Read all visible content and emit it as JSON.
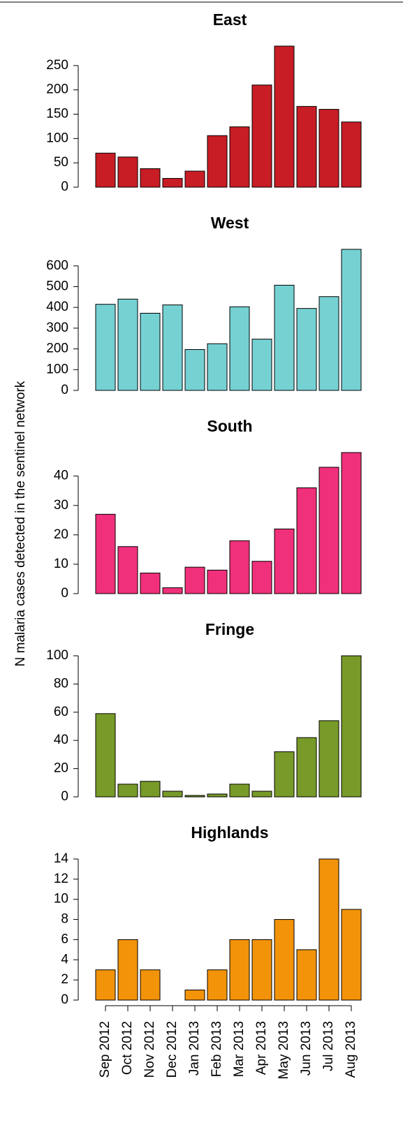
{
  "chart_data": [
    {
      "type": "bar",
      "title": "East",
      "values": [
        70,
        62,
        38,
        18,
        33,
        106,
        124,
        210,
        290,
        166,
        160,
        134
      ],
      "color": "#c81d25",
      "ylim": [
        0,
        290
      ],
      "yticks": [
        0,
        50,
        100,
        150,
        200,
        250
      ]
    },
    {
      "type": "bar",
      "title": "West",
      "values": [
        415,
        440,
        372,
        412,
        197,
        225,
        403,
        247,
        507,
        395,
        452,
        680
      ],
      "color": "#76d1d3",
      "ylim": [
        0,
        680
      ],
      "yticks": [
        0,
        100,
        200,
        300,
        400,
        500,
        600
      ]
    },
    {
      "type": "bar",
      "title": "South",
      "ylabel": "N malaria cases detected in the sentinel network",
      "values": [
        27,
        16,
        7,
        2,
        9,
        8,
        18,
        11,
        22,
        36,
        43,
        48
      ],
      "color": "#f0307a",
      "ylim": [
        0,
        48
      ],
      "yticks": [
        0,
        10,
        20,
        30,
        40
      ]
    },
    {
      "type": "bar",
      "title": "Fringe",
      "values": [
        59,
        9,
        11,
        4,
        1,
        2,
        9,
        4,
        32,
        42,
        54,
        100
      ],
      "color": "#789a28",
      "ylim": [
        0,
        100
      ],
      "yticks": [
        0,
        20,
        40,
        60,
        80,
        100
      ]
    },
    {
      "type": "bar",
      "title": "Highlands",
      "categories": [
        "Sep 2012",
        "Oct 2012",
        "Nov 2012",
        "Dec 2012",
        "Jan 2013",
        "Feb 2013",
        "Mar 2013",
        "Apr 2013",
        "May 2013",
        "Jun 2013",
        "Jul 2013",
        "Aug 2013"
      ],
      "values": [
        3,
        6,
        3,
        0,
        1,
        3,
        6,
        6,
        8,
        5,
        14,
        9
      ],
      "color": "#f2930a",
      "ylim": [
        0,
        14
      ],
      "yticks": [
        0,
        2,
        4,
        6,
        8,
        10,
        12,
        14
      ]
    }
  ]
}
